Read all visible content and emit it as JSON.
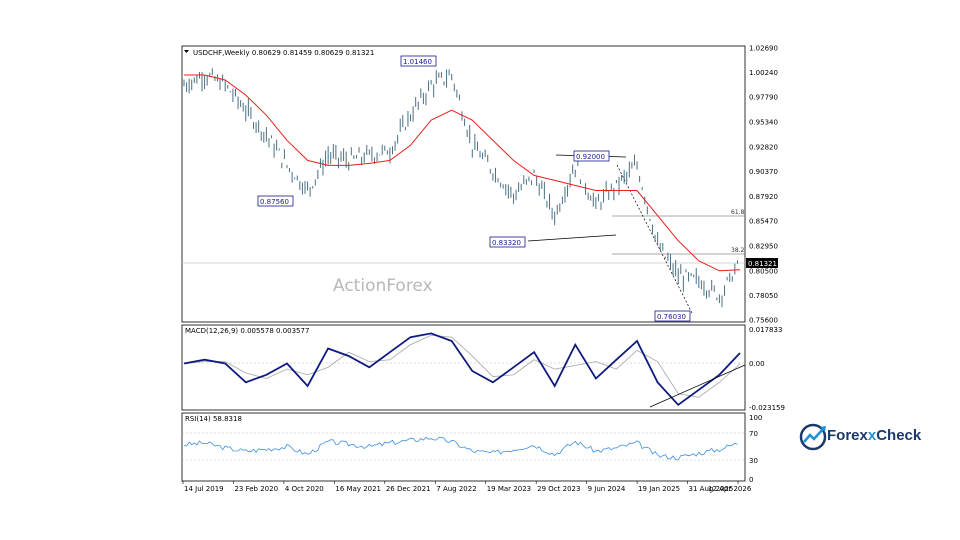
{
  "colors": {
    "price": "#4a6f86",
    "ma": "#e8201a",
    "macd": "#0f1a80",
    "macd_signal": "#b0b0b0",
    "rsi": "#3d8fe0",
    "level_box": "#1a1a8c",
    "brand_dark": "#1b3a6b",
    "brand_light": "#1e90d6"
  },
  "main": {
    "symbol_line": "USDCHF,Weekly  0.80629 0.81459 0.80629 0.81321",
    "watermark": "ActionForex",
    "current_price": "0.81321",
    "price_labels": [
      "1.02690",
      "1.00240",
      "0.97790",
      "0.95340",
      "0.92820",
      "0.90370",
      "0.87920",
      "0.85470",
      "0.82950",
      "0.80500",
      "0.78050",
      "0.75600"
    ],
    "level_labels": {
      "high": "1.01460",
      "mid_high": "0.92000",
      "low1": "0.87560",
      "low2": "0.83320",
      "low3": "0.76030"
    },
    "fib_labels": {
      "f618": "61.8",
      "f382": "38.2"
    }
  },
  "macd": {
    "header": "MACD(12,26,9) 0.005578 0.003577",
    "labels": [
      "0.017833",
      "0.00",
      "-0.023159"
    ]
  },
  "rsi": {
    "header": "RSI(14) 58.8318",
    "labels": [
      "100",
      "70",
      "30",
      "0"
    ]
  },
  "xaxis": {
    "labels": [
      "14 Jul 2019",
      "23 Feb 2020",
      "4 Oct 2020",
      "16 May 2021",
      "26 Dec 2021",
      "7 Aug 2022",
      "19 Mar 2023",
      "29 Oct 2023",
      "9 Jun 2024",
      "19 Jan 2025",
      "31 Aug 2025",
      "12 Apr 2026"
    ]
  },
  "brand": {
    "name_a": "Forex",
    "name_x": "x",
    "name_b": "Check"
  },
  "chart_data": {
    "type": "line",
    "title": "USDCHF,Weekly",
    "ohlc_last": {
      "open": 0.80629,
      "high": 0.81459,
      "low": 0.80629,
      "close": 0.81321
    },
    "ylim": [
      0.756,
      1.0269
    ],
    "x": [
      "2019-07",
      "2019-10",
      "2020-01",
      "2020-04",
      "2020-07",
      "2020-10",
      "2021-01",
      "2021-04",
      "2021-07",
      "2021-10",
      "2022-01",
      "2022-04",
      "2022-07",
      "2022-10",
      "2023-01",
      "2023-04",
      "2023-07",
      "2023-10",
      "2024-01",
      "2024-04",
      "2024-07",
      "2024-10",
      "2025-01",
      "2025-04",
      "2025-07",
      "2025-10",
      "2026-01",
      "2026-04"
    ],
    "series": [
      {
        "name": "USDCHF",
        "values": [
          0.99,
          1.0,
          0.99,
          0.965,
          0.94,
          0.91,
          0.885,
          0.92,
          0.915,
          0.92,
          0.925,
          0.96,
          0.99,
          1.0,
          0.93,
          0.905,
          0.88,
          0.9,
          0.86,
          0.91,
          0.87,
          0.89,
          0.91,
          0.83,
          0.8,
          0.795,
          0.78,
          0.813
        ]
      },
      {
        "name": "MA",
        "values": [
          1.0,
          1.0,
          0.995,
          0.98,
          0.96,
          0.935,
          0.915,
          0.91,
          0.91,
          0.912,
          0.915,
          0.93,
          0.955,
          0.965,
          0.955,
          0.935,
          0.915,
          0.9,
          0.895,
          0.89,
          0.885,
          0.885,
          0.885,
          0.86,
          0.835,
          0.815,
          0.805,
          0.806
        ]
      }
    ],
    "levels": [
      1.0146,
      0.92,
      0.8756,
      0.8332,
      0.7603
    ],
    "fib": {
      "61.8": 0.86,
      "38.2": 0.825
    },
    "macd": {
      "last": 0.005578,
      "signal": 0.003577,
      "ylim": [
        -0.023159,
        0.017833
      ],
      "values": [
        0.0,
        0.002,
        0.0,
        -0.01,
        -0.006,
        0.0,
        -0.012,
        0.008,
        0.004,
        -0.002,
        0.006,
        0.014,
        0.016,
        0.012,
        -0.004,
        -0.01,
        -0.002,
        0.006,
        -0.012,
        0.01,
        -0.008,
        0.002,
        0.012,
        -0.01,
        -0.022,
        -0.014,
        -0.006,
        0.0056
      ]
    },
    "rsi": {
      "last": 58.8318,
      "ylim": [
        0,
        100
      ],
      "levels": [
        70,
        30
      ],
      "values": [
        55,
        58,
        50,
        45,
        48,
        52,
        40,
        60,
        56,
        52,
        58,
        62,
        66,
        60,
        45,
        42,
        48,
        55,
        40,
        60,
        45,
        50,
        58,
        38,
        35,
        42,
        48,
        58.8
      ]
    }
  }
}
